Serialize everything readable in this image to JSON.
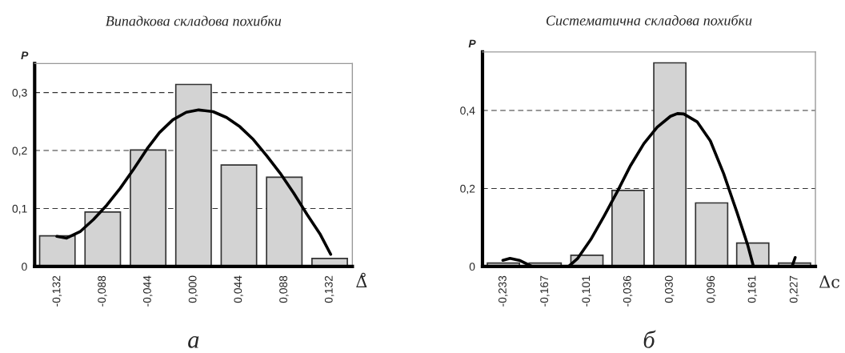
{
  "chart_data": [
    {
      "type": "bar",
      "title": "Випадкова складова похибки",
      "ylabel": "P",
      "xlabel": "Δ̊",
      "annotations": [
        "а"
      ],
      "series": [
        {
          "color": "#d3d3d3",
          "x": [
            -0.132,
            -0.088,
            -0.044,
            0.0,
            0.044,
            0.088,
            0.132
          ],
          "values": [
            0.053,
            0.094,
            0.201,
            0.314,
            0.175,
            0.154,
            0.014
          ]
        },
        {
          "type": "line",
          "color": "#000000",
          "x": [
            -0.1325,
            -0.123,
            -0.11,
            -0.097,
            -0.084,
            -0.071,
            -0.058,
            -0.045,
            -0.033,
            -0.02,
            -0.007,
            0.005,
            0.019,
            0.032,
            0.045,
            0.058,
            0.071,
            0.084,
            0.097,
            0.11,
            0.123,
            0.133
          ],
          "values": [
            0.052,
            0.049,
            0.06,
            0.081,
            0.106,
            0.135,
            0.168,
            0.203,
            0.231,
            0.253,
            0.266,
            0.27,
            0.267,
            0.257,
            0.241,
            0.219,
            0.191,
            0.161,
            0.127,
            0.09,
            0.055,
            0.021
          ]
        }
      ],
      "xlim": [
        -0.154,
        0.154
      ],
      "xticks": [
        {
          "value": -0.132,
          "label": "-0,132"
        },
        {
          "value": -0.088,
          "label": "-0,088"
        },
        {
          "value": -0.044,
          "label": "-0,044"
        },
        {
          "value": 0.0,
          "label": "0,000"
        },
        {
          "value": 0.044,
          "label": "0,044"
        },
        {
          "value": 0.088,
          "label": "0,088"
        },
        {
          "value": 0.132,
          "label": "0,132"
        }
      ],
      "ylim": [
        0,
        0.35
      ],
      "yticks": [
        0,
        {
          "value": 0.1,
          "label": "0,1"
        },
        {
          "value": 0.2,
          "label": "0,2"
        },
        {
          "value": 0.3,
          "label": "0,3"
        }
      ],
      "grid": "y"
    },
    {
      "type": "bar",
      "title": "Систематична складова похибки",
      "ylabel": "P",
      "xlabel": "Δc",
      "annotations": [
        "б"
      ],
      "series": [
        {
          "color": "#d3d3d3",
          "x": [
            -0.233,
            -0.167,
            -0.101,
            -0.036,
            0.03,
            0.096,
            0.161,
            0.227
          ],
          "values": [
            0.009,
            0.009,
            0.029,
            0.195,
            0.522,
            0.163,
            0.06,
            0.009
          ]
        },
        {
          "type": "line",
          "color": "#000000",
          "x": [
            -0.2338,
            -0.2225,
            -0.2078,
            -0.189,
            -0.16,
            -0.13,
            -0.116,
            -0.095,
            -0.074,
            -0.053,
            -0.032,
            -0.011,
            0.01,
            0.031,
            0.042,
            0.052,
            0.073,
            0.094,
            0.115,
            0.136,
            0.153,
            0.162,
            0.19,
            0.223,
            0.228
          ],
          "values": [
            0.016,
            0.021,
            0.016,
            0.001,
            null,
            0.0,
            0.02,
            0.069,
            0.129,
            0.192,
            0.259,
            0.315,
            0.357,
            0.385,
            0.392,
            0.391,
            0.371,
            0.322,
            0.238,
            0.139,
            0.055,
            0.001,
            null,
            0.0,
            0.023
          ]
        }
      ],
      "xlim": [
        -0.266,
        0.26
      ],
      "xticks": [
        {
          "value": -0.233,
          "label": "-0,233"
        },
        {
          "value": -0.167,
          "label": "-0,167"
        },
        {
          "value": -0.101,
          "label": "-0,101"
        },
        {
          "value": -0.036,
          "label": "-0,036"
        },
        {
          "value": 0.03,
          "label": "0,030"
        },
        {
          "value": 0.096,
          "label": "0,096"
        },
        {
          "value": 0.161,
          "label": "0,161"
        },
        {
          "value": 0.227,
          "label": "0,227"
        }
      ],
      "ylim": [
        0,
        0.55
      ],
      "yticks": [
        0,
        {
          "value": 0.2,
          "label": "0,2"
        },
        {
          "value": 0.4,
          "label": "0,4"
        }
      ],
      "grid": "y"
    }
  ]
}
